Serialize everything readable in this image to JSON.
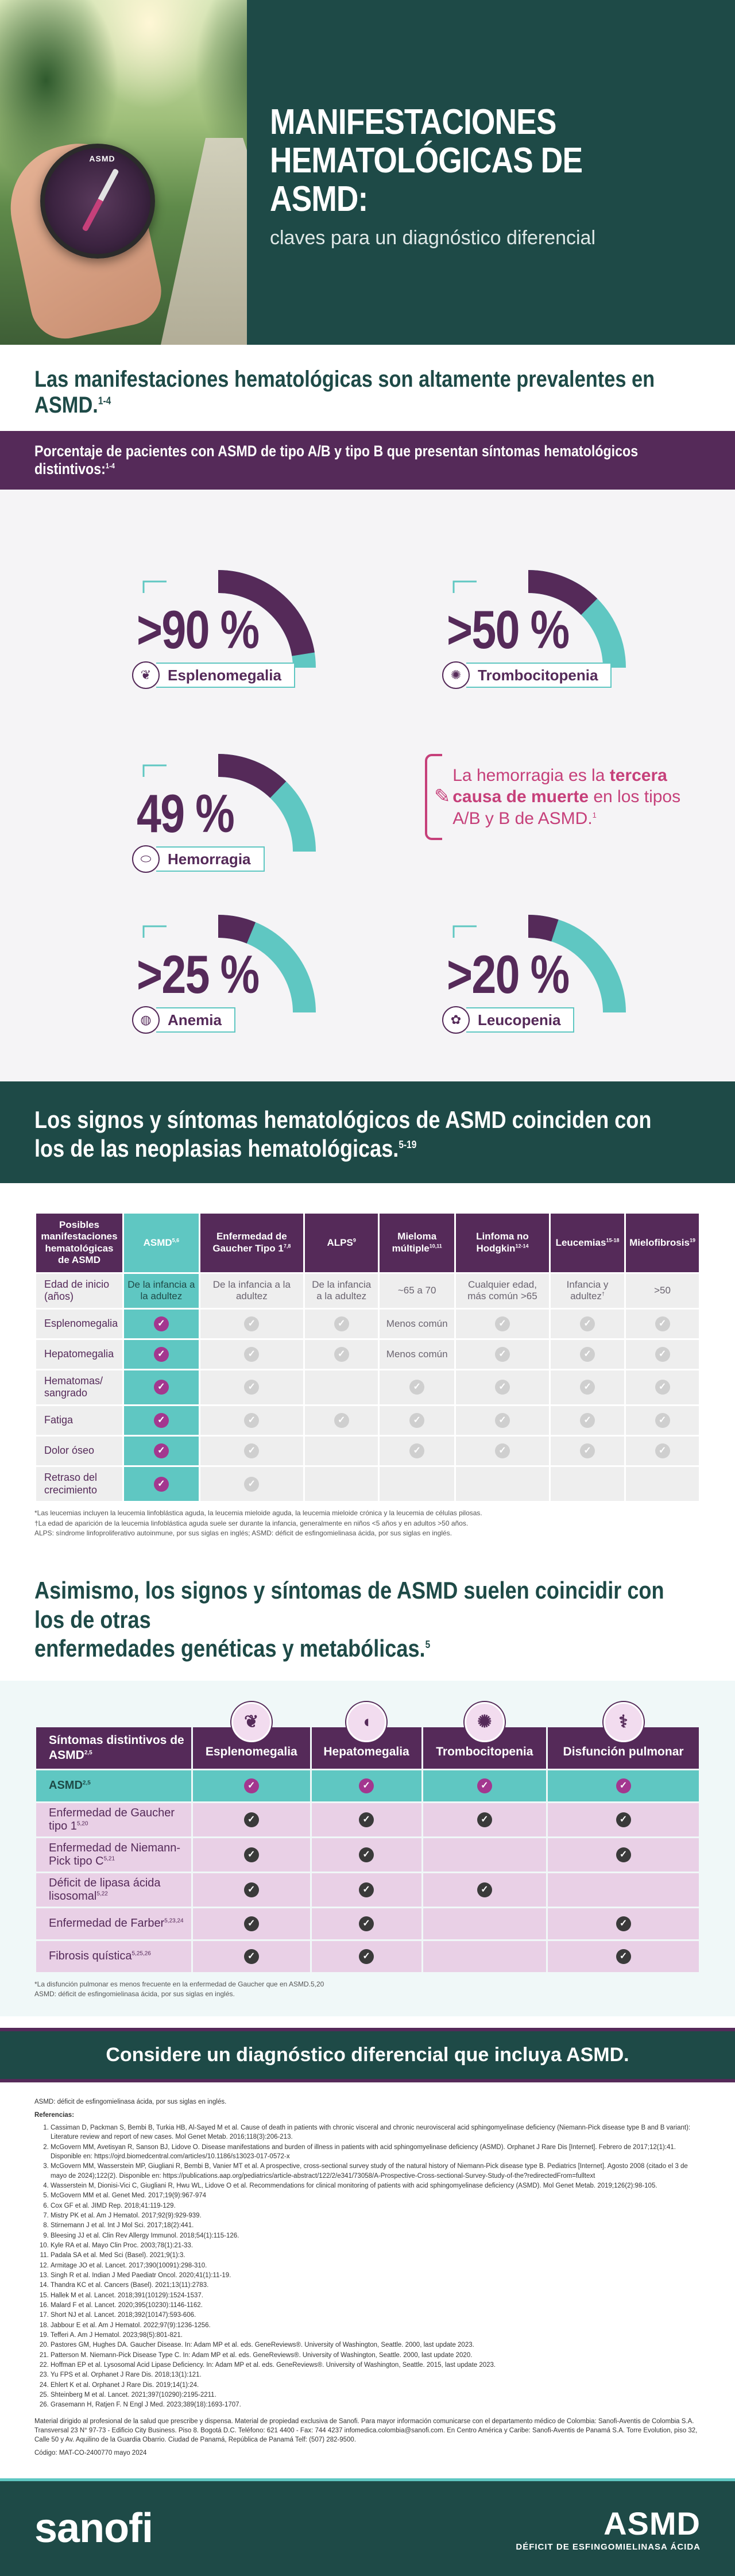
{
  "hero": {
    "title_line1": "MANIFESTACIONES",
    "title_line2": "HEMATOLÓGICAS DE ASMD:",
    "subtitle": "claves para un diagnóstico diferencial",
    "compass_text": "ASMD"
  },
  "intro": {
    "heading": "Las manifestaciones hematológicas son altamente prevalentes en ASMD.",
    "heading_ref": "1-4"
  },
  "percent_band": {
    "heading": "Porcentaje de pacientes con ASMD de tipo A/B y tipo B que presentan síntomas hematológicos distintivos:",
    "heading_ref": "1-4"
  },
  "gauges": [
    {
      "value": ">90 %",
      "label": "Esplenomegalia",
      "icon": "spleen-icon",
      "fraction": 0.9
    },
    {
      "value": ">50 %",
      "label": "Trombocitopenia",
      "icon": "platelet-icon",
      "fraction": 0.5
    },
    {
      "value": "49 %",
      "label": "Hemorragia",
      "icon": "blood-cells-icon",
      "fraction": 0.49
    },
    {
      "value": ">25 %",
      "label": "Anemia",
      "icon": "red-cell-icon",
      "fraction": 0.25
    },
    {
      "value": ">20 %",
      "label": "Leucopenia",
      "icon": "white-cell-icon",
      "fraction": 0.2
    }
  ],
  "callout": {
    "pre": "La hemorragia es la",
    "bold": "tercera causa de muerte",
    "post": "en los tipos A/B y B de ASMD.",
    "ref": "1"
  },
  "section2": {
    "heading_line1": "Los signos y síntomas hematológicos de ASMD coinciden con",
    "heading_line2": "los de las neoplasias hematológicas.",
    "heading_ref": "5-19"
  },
  "table1": {
    "headers": [
      {
        "label": "Posibles manifestaciones hematológicas de ASMD",
        "ref": ""
      },
      {
        "label": "ASMD",
        "ref": "5,6"
      },
      {
        "label": "Enfermedad de Gaucher Tipo 1",
        "ref": "7,8"
      },
      {
        "label": "ALPS",
        "ref": "9"
      },
      {
        "label": "Mieloma múltiple",
        "ref": "10,11"
      },
      {
        "label": "Linfoma no Hodgkin",
        "ref": "12-14"
      },
      {
        "label": "Leucemias",
        "ref": "15-18"
      },
      {
        "label": "Mielofibrosis",
        "ref": "19"
      }
    ],
    "onset_row": {
      "label": "Edad de inicio (años)",
      "cells": [
        "De la infancia a la adultez",
        "De la infancia a la adultez",
        "De la infancia a la adultez",
        "~65 a 70",
        "Cualquier edad, más común >65",
        "Infancia y adultez",
        ">50"
      ],
      "leukemia_ref": "†"
    },
    "rows": [
      {
        "label": "Esplenomegalia",
        "cells": [
          "on",
          "check",
          "check",
          "Menos común",
          "check",
          "check",
          "check"
        ]
      },
      {
        "label": "Hepatomegalia",
        "cells": [
          "on",
          "check",
          "check",
          "Menos común",
          "check",
          "check",
          "check"
        ]
      },
      {
        "label": "Hematomas/ sangrado",
        "cells": [
          "on",
          "check",
          "",
          "check",
          "check",
          "check",
          "check"
        ]
      },
      {
        "label": "Fatiga",
        "cells": [
          "on",
          "check",
          "check",
          "check",
          "check",
          "check",
          "check"
        ]
      },
      {
        "label": "Dolor óseo",
        "cells": [
          "on",
          "check",
          "",
          "check",
          "check",
          "check",
          "check"
        ]
      },
      {
        "label": "Retraso del crecimiento",
        "cells": [
          "on",
          "check",
          "",
          "",
          "",
          "",
          ""
        ]
      }
    ],
    "footnotes": [
      "*Las leucemias incluyen la leucemia linfoblástica aguda, la leucemia mieloide aguda, la leucemia mieloide crónica y la leucemia de células pilosas.",
      "†La edad de aparición de la leucemia linfoblástica aguda suele ser durante la infancia, generalmente en niños <5 años y en adultos >50 años.",
      "ALPS: síndrome linfoproliferativo autoinmune, por sus siglas en inglés; ASMD: déficit de esfingomielinasa ácida, por sus siglas en inglés."
    ]
  },
  "section3": {
    "heading_line1": "Asimismo, los signos y síntomas de ASMD suelen coincidir con los de otras",
    "heading_line2": "enfermedades genéticas y metabólicas.",
    "heading_ref": "5"
  },
  "table2": {
    "headers": [
      {
        "label": "Síntomas distintivos de ASMD",
        "ref": "2,5",
        "icon": ""
      },
      {
        "label": "Esplenomegalia",
        "ref": "",
        "icon": "spleen-icon"
      },
      {
        "label": "Hepatomegalia",
        "ref": "",
        "icon": "liver-icon"
      },
      {
        "label": "Trombocitopenia",
        "ref": "",
        "icon": "platelet-icon"
      },
      {
        "label": "Disfunción pulmonar",
        "ref": "",
        "icon": "lungs-icon"
      }
    ],
    "rows": [
      {
        "label": "ASMD",
        "ref": "2,5",
        "cells": [
          "on",
          "on",
          "on",
          "on"
        ]
      },
      {
        "label": "Enfermedad de Gaucher tipo 1",
        "ref": "5,20",
        "cells": [
          "dk",
          "dk",
          "dk",
          "dk"
        ]
      },
      {
        "label": "Enfermedad de Niemann-Pick tipo C",
        "ref": "5,21",
        "cells": [
          "dk",
          "dk",
          "",
          "dk"
        ]
      },
      {
        "label": "Déficit de lipasa ácida lisosomal",
        "ref": "5,22",
        "cells": [
          "dk",
          "dk",
          "dk",
          ""
        ]
      },
      {
        "label": "Enfermedad de Farber",
        "ref": "5,23,24",
        "cells": [
          "dk",
          "dk",
          "",
          "dk"
        ]
      },
      {
        "label": "Fibrosis quística",
        "ref": "5,25,26",
        "cells": [
          "dk",
          "dk",
          "",
          "dk"
        ]
      }
    ],
    "footnotes": [
      "*La disfunción pulmonar es menos frecuente en la enfermedad de Gaucher que en ASMD.5,20",
      "ASMD: déficit de esfingomielinasa ácida, por sus siglas en inglés."
    ]
  },
  "cta": "Considere un diagnóstico diferencial que incluya ASMD.",
  "references": {
    "abbr": "ASMD: déficit de esfingomielinasa ácida, por sus siglas en inglés.",
    "title": "Referencias:",
    "items": [
      "Cassiman D, Packman S, Bembi B, Turkia HB, Al-Sayed M et al. Cause of death in patients with chronic visceral and chronic neurovisceral acid sphingomyelinase deficiency (Niemann-Pick disease type B and B variant): Literature review and report of new cases. Mol Genet Metab. 2016;118(3):206-213.",
      "McGovern MM, Avetisyan R, Sanson BJ, Lidove O. Disease manifestations and burden of illness in patients with acid sphingomyelinase deficiency (ASMD). Orphanet J Rare Dis [Internet]. Febrero de 2017;12(1):41. Disponible en: https://ojrd.biomedcentral.com/articles/10.1186/s13023-017-0572-x",
      "McGovern MM, Wasserstein MP, Giugliani R, Bembi B, Vanier MT et al. A prospective, cross-sectional survey study of the natural history of Niemann-Pick disease type B. Pediatrics [Internet]. Agosto 2008 (citado el 3 de mayo de 2024);122(2). Disponible en: https://publications.aap.org/pediatrics/article-abstract/122/2/e341/73058/A-Prospective-Cross-sectional-Survey-Study-of-the?redirectedFrom=fulltext",
      "Wasserstein M, Dionisi-Vici C, Giugliani R, Hwu WL, Lidove O et al. Recommendations for clinical monitoring of patients with acid sphingomyelinase deficiency (ASMD). Mol Genet Metab. 2019;126(2):98-105.",
      "McGovern MM et al. Genet Med. 2017;19(9):967-974",
      "Cox GF et al. JIMD Rep. 2018;41:119-129.",
      "Mistry PK et al. Am J Hematol. 2017;92(9):929-939.",
      "Stirnemann J et al. Int J Mol Sci. 2017;18(2):441.",
      "Bleesing JJ et al. Clin Rev Allergy Immunol. 2018;54(1):115-126.",
      "Kyle RA et al. Mayo Clin Proc. 2003;78(1):21-33.",
      "Padala SA et al. Med Sci (Basel). 2021;9(1):3.",
      "Armitage JO et al. Lancet. 2017;390(10091):298-310.",
      "Singh R et al. Indian J Med Paediatr Oncol. 2020;41(1):11-19.",
      "Thandra KC et al. Cancers (Basel). 2021;13(11):2783.",
      "Hallek M et al. Lancet. 2018;391(10129):1524-1537.",
      "Malard F et al. Lancet. 2020;395(10230):1146-1162.",
      "Short NJ et al. Lancet. 2018;392(10147):593-606.",
      "Jabbour E et al. Am J Hematol. 2022;97(9):1236-1256.",
      "Tefferi A. Am J Hematol. 2023;98(5):801-821.",
      "Pastores GM, Hughes DA. Gaucher Disease. In: Adam MP et al. eds. GeneReviews®. University of Washington, Seattle. 2000, last update 2023.",
      "Patterson M. Niemann-Pick Disease Type C. In: Adam MP et al. eds. GeneReviews®. University of Washington, Seattle. 2000, last update 2020.",
      "Hoffman EP et al. Lysosomal Acid Lipase Deficiency. In: Adam MP et al. eds. GeneReviews®. University of Washington, Seattle. 2015, last update 2023.",
      "Yu FPS et al. Orphanet J Rare Dis. 2018;13(1):121.",
      "Ehlert K et al. Orphanet J Rare Dis. 2019;14(1):24.",
      "Shteinberg M et al. Lancet. 2021;397(10290):2195-2211.",
      "Grasemann H, Ratjen F. N Engl J Med. 2023;389(18):1693-1707."
    ],
    "disclaimer": "Material dirigido al profesional de la salud que prescribe y dispensa. Material de propiedad exclusiva de Sanofi. Para mayor información comunicarse con el departamento médico de Colombia: Sanofi-Aventis de Colombia S.A. Transversal 23 N° 97-73 - Edificio City Business. Piso 8. Bogotá D.C. Teléfono: 621 4400 - Fax: 744 4237 infomedica.colombia@sanofi.com. En Centro América y Caribe: Sanofi-Aventis de Panamá S.A. Torre Evolution, piso 32, Calle 50 y Av. Aquilino de la Guardia Obarrio. Ciudad de Panamá, República de Panamá Telf: (507) 282-9500.",
    "code": "Código: MAT-CO-2400770 mayo 2024"
  },
  "footer": {
    "brand": "sanofi",
    "product": "ASMD",
    "product_sub": "DÉFICIT DE ESFINGOMIELINASA ÁCIDA"
  },
  "colors": {
    "teal_dark": "#1e4a47",
    "purple": "#552a59",
    "turquoise": "#5fc7c2",
    "magenta": "#c6407a"
  }
}
